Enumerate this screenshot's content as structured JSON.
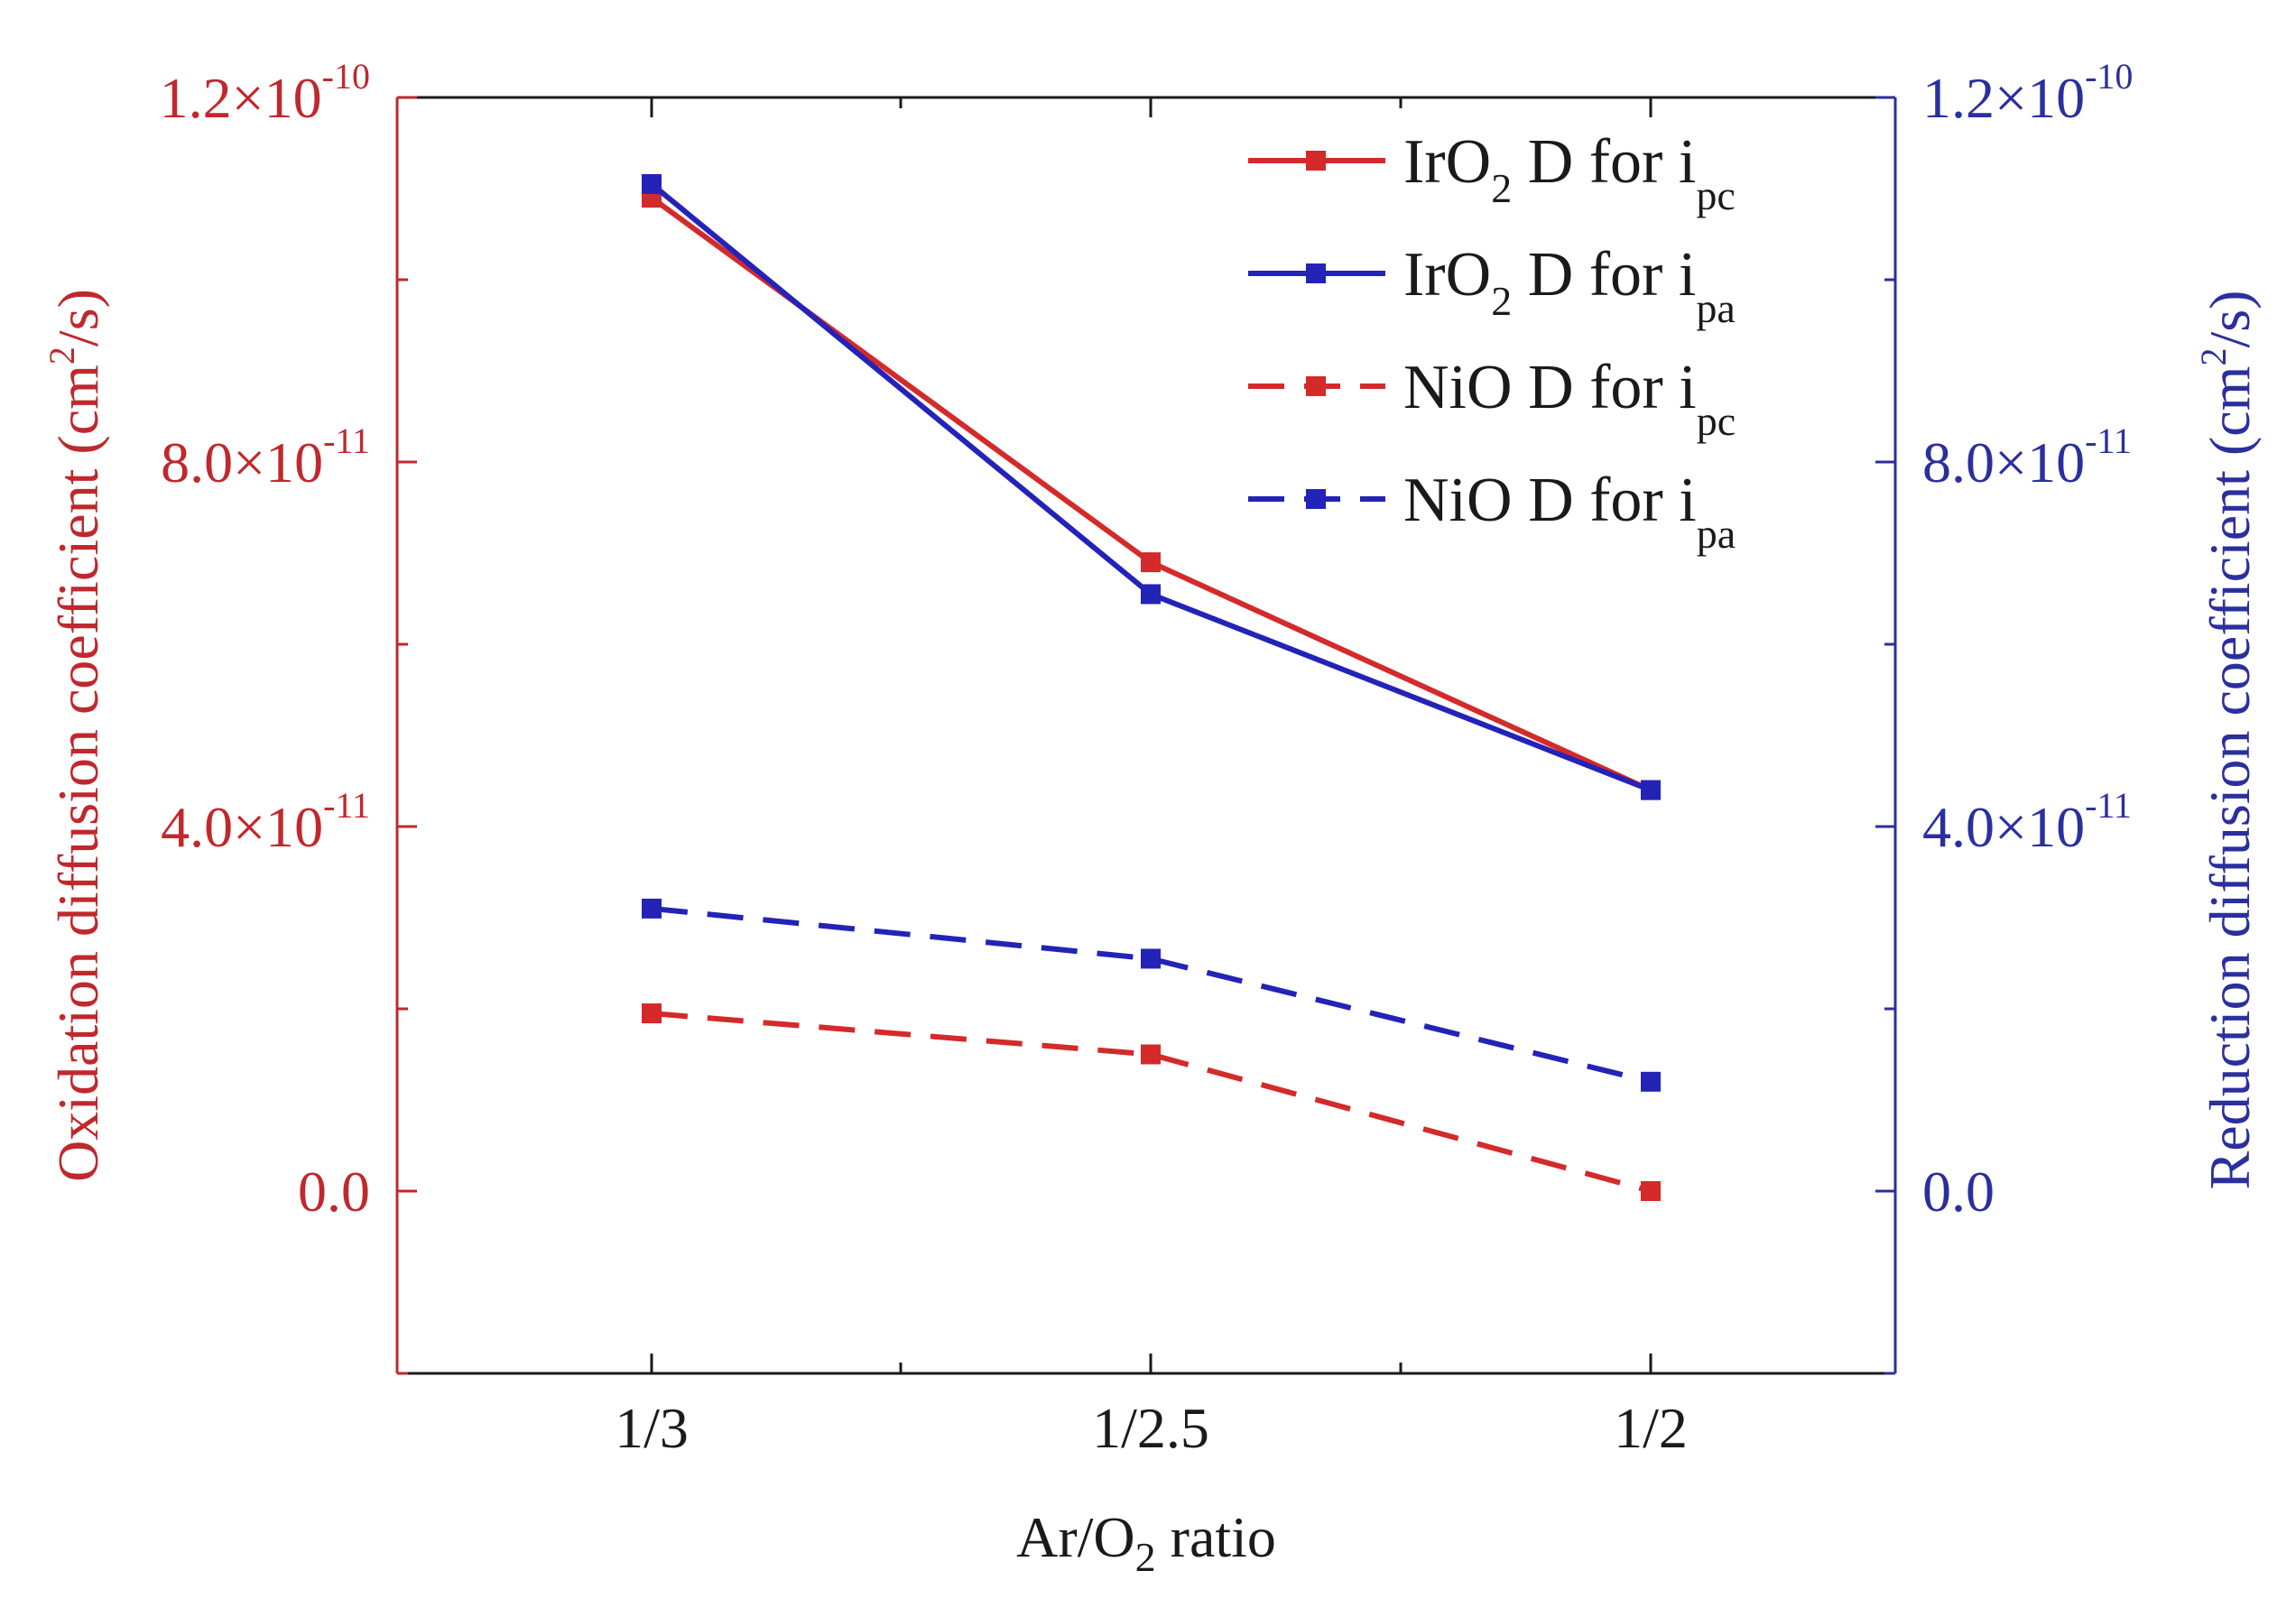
{
  "chart_data": {
    "type": "line",
    "x": [
      "1/3",
      "1/2.5",
      "1/2"
    ],
    "xlabel": {
      "main": "Ar/O",
      "sub": "2",
      "rest": " ratio"
    },
    "ylabel_left": {
      "main": "Oxidation diffusion coefficient (cm",
      "sup": "2",
      "rest": "/s)"
    },
    "ylabel_right": {
      "main": "Reduction diffusion coefficient (cm",
      "sup": "2",
      "rest": "/s)"
    },
    "ylim_left": [
      -2e-11,
      1.2e-10
    ],
    "ylim_right": [
      -2e-11,
      1.2e-10
    ],
    "yticks_left": [
      {
        "value": 0.0,
        "base": "0.0",
        "exp": ""
      },
      {
        "value": 4e-11,
        "base": "4.0×10",
        "exp": "-11"
      },
      {
        "value": 8e-11,
        "base": "8.0×10",
        "exp": "-11"
      },
      {
        "value": 1.2e-10,
        "base": "1.2×10",
        "exp": "-10"
      }
    ],
    "yticks_right": [
      {
        "value": 0.0,
        "base": "0.0",
        "exp": ""
      },
      {
        "value": 4e-11,
        "base": "4.0×10",
        "exp": "-11"
      },
      {
        "value": 8e-11,
        "base": "8.0×10",
        "exp": "-11"
      },
      {
        "value": 1.2e-10,
        "base": "1.2×10",
        "exp": "-10"
      }
    ],
    "legend_position": "top-right",
    "series": [
      {
        "name": "IrO2 D for ipc",
        "legend": {
          "pre": "IrO",
          "sub1": "2",
          "mid": " D for i",
          "sub2": "pc"
        },
        "axis": "left",
        "color": "#d42a2a",
        "dash": "solid",
        "values": [
          1.09e-10,
          6.9e-11,
          4.4e-11
        ]
      },
      {
        "name": "IrO2 D for ipa",
        "legend": {
          "pre": "IrO",
          "sub1": "2",
          "mid": " D for i",
          "sub2": "pa"
        },
        "axis": "right",
        "color": "#2323b8",
        "dash": "solid",
        "values": [
          1.105e-10,
          6.55e-11,
          4.4e-11
        ]
      },
      {
        "name": "NiO D for ipc",
        "legend": {
          "pre": "NiO",
          "sub1": "",
          "mid": " D for i",
          "sub2": "pc"
        },
        "axis": "left",
        "color": "#d42a2a",
        "dash": "dashed",
        "values": [
          1.95e-11,
          1.5e-11,
          0.0
        ]
      },
      {
        "name": "NiO D for ipa",
        "legend": {
          "pre": "NiO",
          "sub1": "",
          "mid": " D for i",
          "sub2": "pa"
        },
        "axis": "right",
        "color": "#2323b8",
        "dash": "dashed",
        "values": [
          3.1e-11,
          2.55e-11,
          1.2e-11
        ]
      }
    ]
  },
  "colors": {
    "left_axis": "#c0282d",
    "right_axis": "#2b2f9e",
    "frame": "#1a1a1a"
  }
}
